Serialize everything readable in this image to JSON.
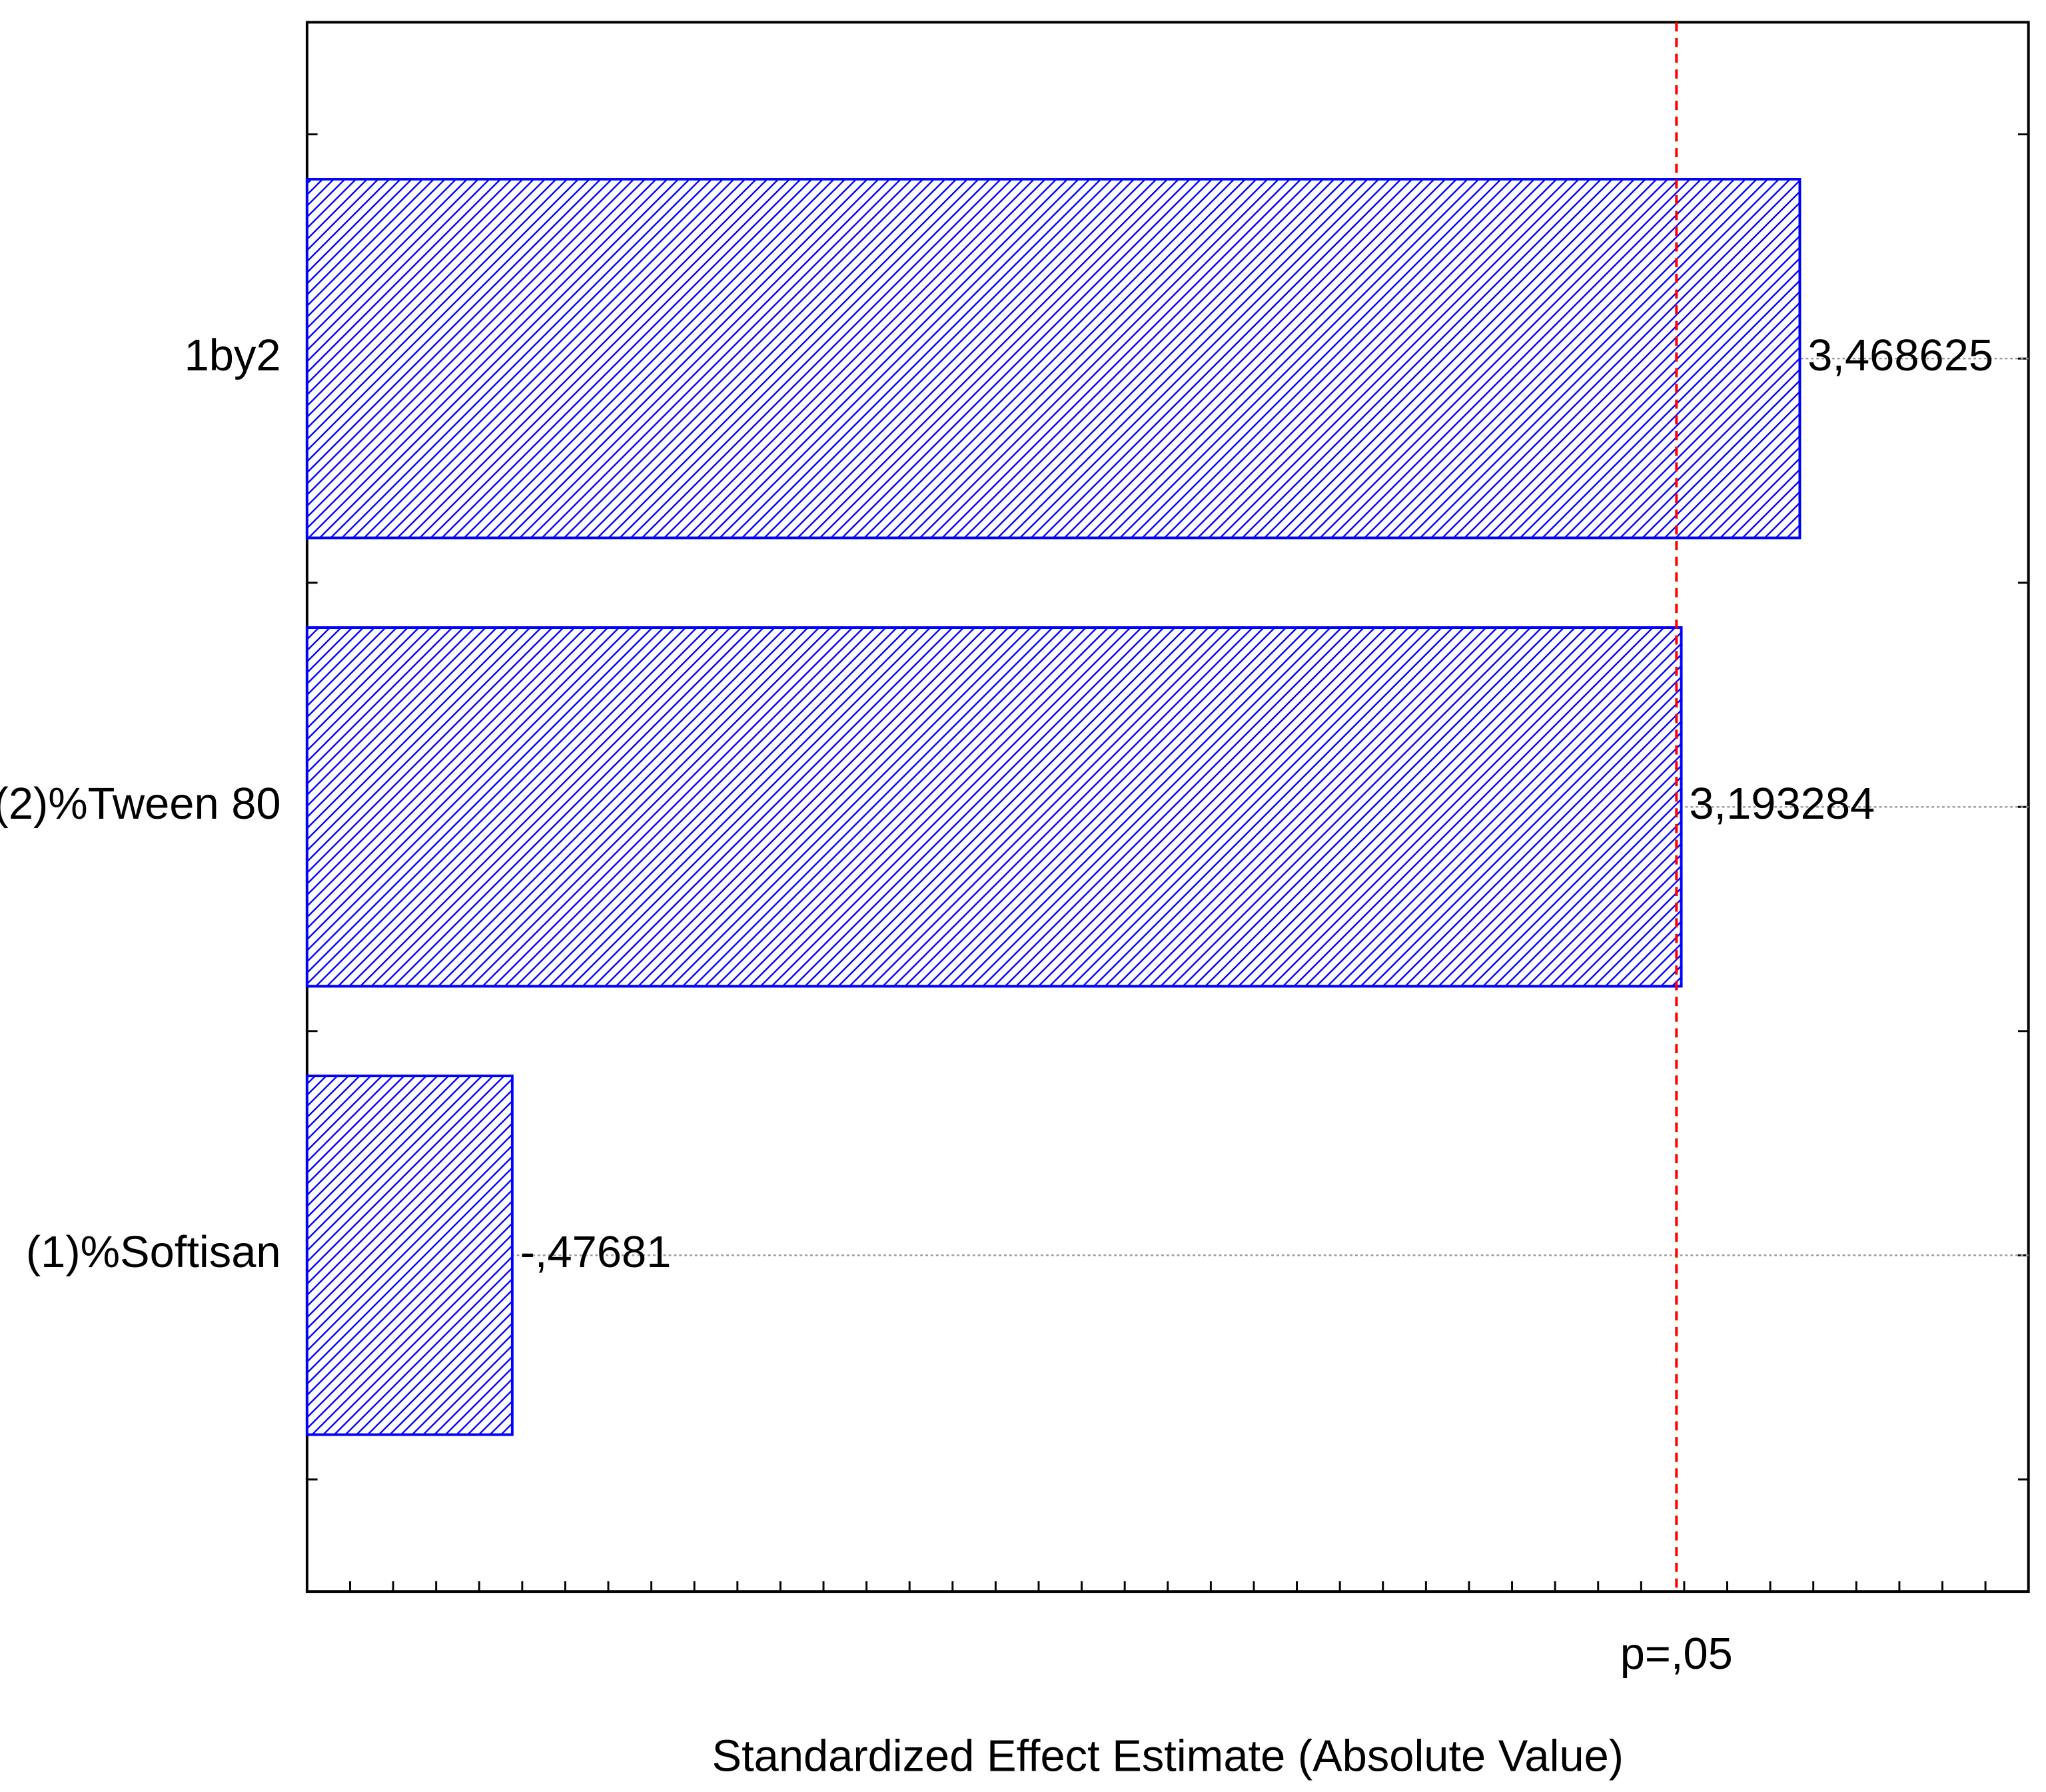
{
  "chart_data": {
    "type": "bar",
    "orientation": "horizontal",
    "x_label": "Standardized Effect Estimate (Absolute Value)",
    "categories": [
      "1by2",
      "(2)%Tween 80",
      "(1)%Softisan"
    ],
    "values": [
      3.468625,
      3.193284,
      -0.47681
    ],
    "value_labels": [
      "3,468625",
      "3,193284",
      "-,47681"
    ],
    "color": "#0000ff",
    "xlim": [
      0,
      4
    ],
    "xticks": [
      0,
      0.1,
      0.2,
      0.3,
      0.4,
      0.5,
      0.6,
      0.7,
      0.8,
      0.9,
      1,
      1.1,
      1.2,
      1.3,
      1.4,
      1.5,
      1.6,
      1.7,
      1.8,
      1.9,
      2,
      2.1,
      2.2,
      2.3,
      2.4,
      2.5,
      2.6,
      2.7,
      2.8,
      2.9,
      3,
      3.1,
      3.2,
      3.3,
      3.4,
      3.5,
      3.6,
      3.7,
      3.8,
      3.9,
      4
    ],
    "grid": true,
    "reference_line": {
      "value": 3.182,
      "label": "p=,05",
      "color": "#ff0000"
    }
  }
}
